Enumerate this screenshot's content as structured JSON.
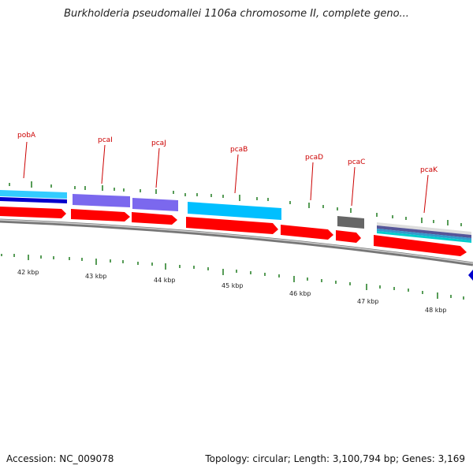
{
  "title": "Burkholderia pseudomallei 1106a chromosome II, complete geno...",
  "footer": {
    "accession": "Accession: NC_009078",
    "stats": "Topology: circular; Length: 3,100,794 bp; Genes: 3,169"
  },
  "colors": {
    "cds": "#ff0000",
    "tick": "#1f7a1f",
    "label": "#cc0000",
    "backbone": "#888888",
    "cyan": "#00bfff",
    "purple": "#7b68ee",
    "gray": "#666666",
    "navy": "#0000cc"
  },
  "gene_labels": [
    "pobA",
    "pcaI",
    "pcaJ",
    "pcaB",
    "pcaD",
    "pcaC",
    "pcaK"
  ],
  "kbp_labels": [
    "42 kbp",
    "43 kbp",
    "44 kbp",
    "45 kbp",
    "46 kbp",
    "47 kbp",
    "48 kbp"
  ]
}
